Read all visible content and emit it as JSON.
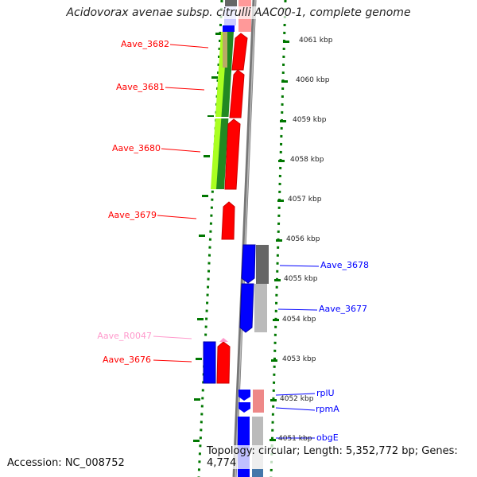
{
  "title": "Acidovorax avenae subsp. citrulli AAC00-1, complete genome",
  "accession": "Accession: NC_008752",
  "topology": "Topology: circular; Length: 5,352,772 bp; Genes: 4,774",
  "kbp_labels": [
    "4061 kbp",
    "4060 kbp",
    "4059 kbp",
    "4058 kbp",
    "4057 kbp",
    "4056 kbp",
    "4055 kbp",
    "4054 kbp",
    "4053 kbp",
    "4052 kbp",
    "4051 kbp"
  ],
  "left_genes": [
    "Aave_3682",
    "Aave_3681",
    "Aave_3680",
    "Aave_3679",
    "Aave_R0047",
    "Aave_3676"
  ],
  "right_genes": [
    "Aave_3678",
    "Aave_3677",
    "rplU",
    "rpmA",
    "obgE"
  ],
  "colors": {
    "forward": "#ff0000",
    "reverse": "#0000ff",
    "rna": "#ff99cc",
    "tick": "#007700"
  }
}
